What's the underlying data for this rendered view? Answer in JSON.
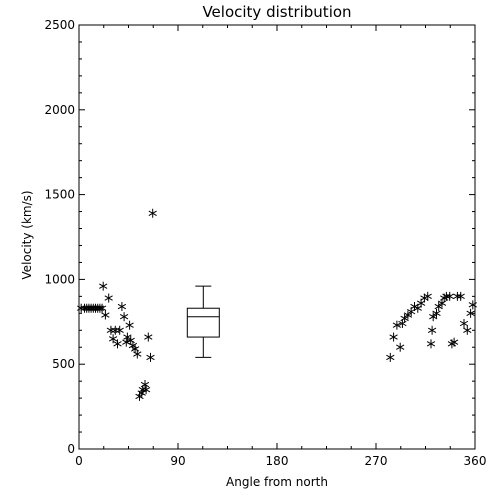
{
  "chart_data": {
    "type": "scatter",
    "title": "Velocity distribution",
    "xlabel": "Angle from north",
    "ylabel": "Velocity (km/s)",
    "xlim": [
      0,
      360
    ],
    "ylim": [
      0,
      2500
    ],
    "xticks": [
      0,
      90,
      180,
      270,
      360
    ],
    "yticks": [
      0,
      500,
      1000,
      1500,
      2000,
      2500
    ],
    "grid": false,
    "marker": "asterisk",
    "points": [
      [
        2,
        830
      ],
      [
        5,
        830
      ],
      [
        7,
        830
      ],
      [
        9,
        830
      ],
      [
        11,
        830
      ],
      [
        13,
        830
      ],
      [
        15,
        830
      ],
      [
        17,
        830
      ],
      [
        19,
        830
      ],
      [
        21,
        830
      ],
      [
        22,
        960
      ],
      [
        24,
        790
      ],
      [
        27,
        890
      ],
      [
        29,
        700
      ],
      [
        31,
        650
      ],
      [
        33,
        700
      ],
      [
        35,
        620
      ],
      [
        37,
        700
      ],
      [
        39,
        840
      ],
      [
        41,
        780
      ],
      [
        43,
        630
      ],
      [
        44,
        660
      ],
      [
        46,
        730
      ],
      [
        47,
        640
      ],
      [
        49,
        610
      ],
      [
        51,
        590
      ],
      [
        53,
        560
      ],
      [
        55,
        310
      ],
      [
        57,
        330
      ],
      [
        58,
        350
      ],
      [
        60,
        380
      ],
      [
        61,
        350
      ],
      [
        63,
        660
      ],
      [
        65,
        540
      ],
      [
        67,
        1390
      ],
      [
        283,
        540
      ],
      [
        286,
        660
      ],
      [
        289,
        730
      ],
      [
        292,
        600
      ],
      [
        294,
        740
      ],
      [
        296,
        770
      ],
      [
        299,
        790
      ],
      [
        302,
        810
      ],
      [
        305,
        840
      ],
      [
        308,
        830
      ],
      [
        311,
        860
      ],
      [
        314,
        890
      ],
      [
        317,
        900
      ],
      [
        320,
        620
      ],
      [
        321,
        700
      ],
      [
        322,
        780
      ],
      [
        325,
        800
      ],
      [
        327,
        840
      ],
      [
        330,
        860
      ],
      [
        332,
        890
      ],
      [
        334,
        900
      ],
      [
        337,
        900
      ],
      [
        339,
        620
      ],
      [
        341,
        630
      ],
      [
        344,
        900
      ],
      [
        347,
        900
      ],
      [
        350,
        740
      ],
      [
        353,
        700
      ],
      [
        356,
        800
      ],
      [
        358,
        850
      ]
    ],
    "boxplot": {
      "position": 113,
      "min": 540,
      "q1": 660,
      "median": 780,
      "q3": 830,
      "max": 960
    }
  }
}
